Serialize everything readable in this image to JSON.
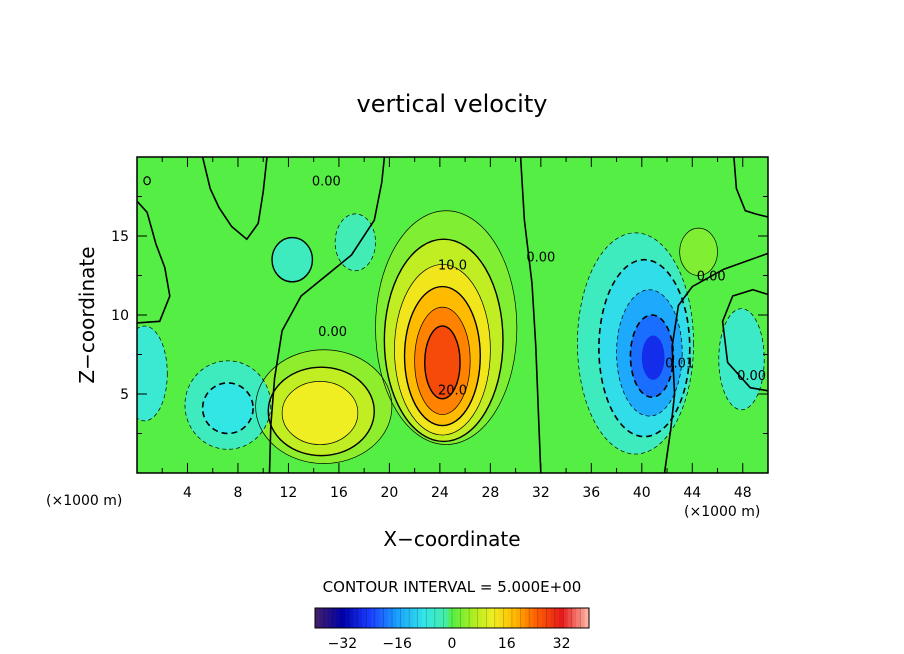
{
  "chart_data": {
    "type": "heatmap",
    "title": "vertical velocity",
    "xlabel": "X−coordinate",
    "ylabel": "Z−coordinate",
    "x_unit": "(×1000 m)",
    "y_unit": "(×1000 m)",
    "xlim": [
      0,
      50
    ],
    "ylim": [
      0,
      20
    ],
    "x_ticks": [
      4,
      8,
      12,
      16,
      20,
      24,
      28,
      32,
      36,
      40,
      44,
      48
    ],
    "x_tick_labels": [
      "4",
      "8",
      "12",
      "16",
      "20",
      "24",
      "28",
      "32",
      "36",
      "40",
      "44",
      "48"
    ],
    "y_ticks": [
      5,
      10,
      15
    ],
    "y_tick_labels": [
      "5",
      "10",
      "15"
    ],
    "contour_interval_text": "CONTOUR INTERVAL = 5.000E+00",
    "contour_interval": 5,
    "colorbar": {
      "range": [
        -40,
        40
      ],
      "ticks": [
        -32,
        -16,
        0,
        16,
        32
      ],
      "tick_labels": [
        "−32",
        "−16",
        "0",
        "16",
        "32"
      ]
    },
    "contour_labels": [
      {
        "text": "0.00",
        "x": 15.0,
        "y": 18.5
      },
      {
        "text": "10.0",
        "x": 25.0,
        "y": 13.2
      },
      {
        "text": "0.00",
        "x": 32.0,
        "y": 13.7
      },
      {
        "text": "0.00",
        "x": 15.5,
        "y": 9.0
      },
      {
        "text": "20.0",
        "x": 25.0,
        "y": 5.3
      },
      {
        "text": "0.00",
        "x": 45.5,
        "y": 12.5
      },
      {
        "text": "0.01",
        "x": 43.0,
        "y": 7.0
      },
      {
        "text": "0.00",
        "x": 48.7,
        "y": 6.2
      }
    ],
    "field_features": [
      {
        "kind": "updraft",
        "x": 24.2,
        "y": 7.0,
        "peak": 30
      },
      {
        "kind": "updraft",
        "x": 14.5,
        "y": 3.8,
        "peak": 13
      },
      {
        "kind": "downdraft",
        "x": 40.8,
        "y": 7.4,
        "peak": -28
      },
      {
        "kind": "downdraft",
        "x": 7.2,
        "y": 4.2,
        "peak": -9
      },
      {
        "kind": "downdraft",
        "x": 0.6,
        "y": 6.3,
        "peak": -7
      },
      {
        "kind": "downdraft",
        "x": 47.8,
        "y": 7.2,
        "peak": -6
      },
      {
        "kind": "downdraft",
        "x": 12.3,
        "y": 13.5,
        "peak": -5
      },
      {
        "kind": "downdraft",
        "x": 17.3,
        "y": 14.5,
        "peak": -3
      }
    ]
  }
}
